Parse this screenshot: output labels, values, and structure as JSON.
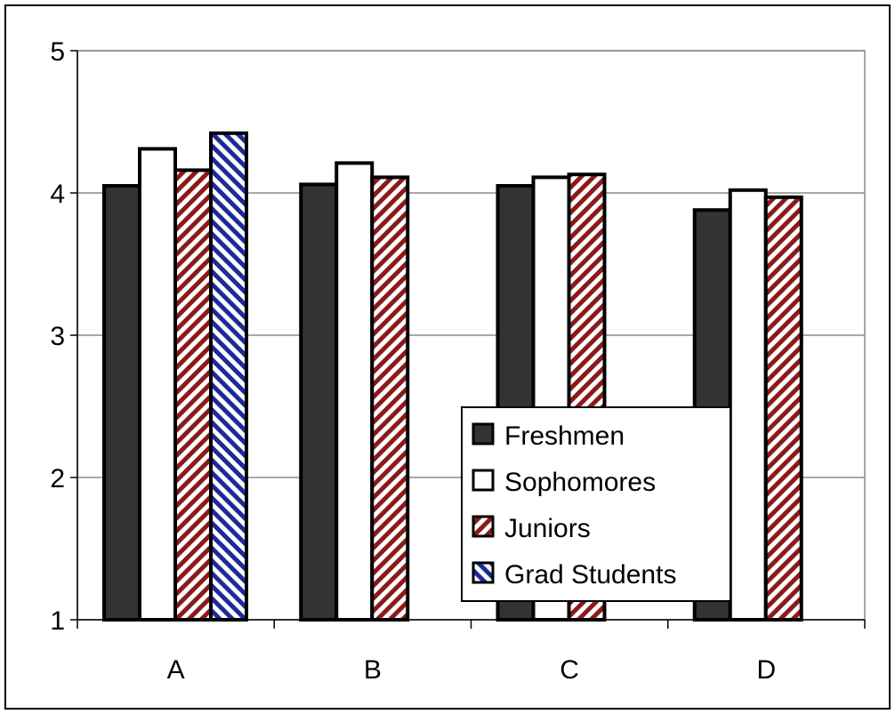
{
  "chart_data": {
    "type": "bar",
    "categories": [
      "A",
      "B",
      "C",
      "D"
    ],
    "series": [
      {
        "name": "Freshmen",
        "values": [
          4.05,
          4.06,
          4.05,
          3.88
        ],
        "color": "#333333",
        "pattern": "solid"
      },
      {
        "name": "Sophomores",
        "values": [
          4.31,
          4.21,
          4.11,
          4.02
        ],
        "color": "#ffffff",
        "pattern": "solid"
      },
      {
        "name": "Juniors",
        "values": [
          4.16,
          4.11,
          4.13,
          3.97
        ],
        "color": "#8b1a1a",
        "pattern": "diagonal-stripes"
      },
      {
        "name": "Grad Students",
        "values": [
          4.42,
          null,
          null,
          null
        ],
        "color": "#1f2a99",
        "pattern": "diagonal-stripes"
      }
    ],
    "ylim": [
      1,
      5
    ],
    "yticks": [
      1,
      2,
      3,
      4,
      5
    ],
    "grid": true,
    "legend_position": "lower-right",
    "title": "",
    "xlabel": "",
    "ylabel": ""
  }
}
